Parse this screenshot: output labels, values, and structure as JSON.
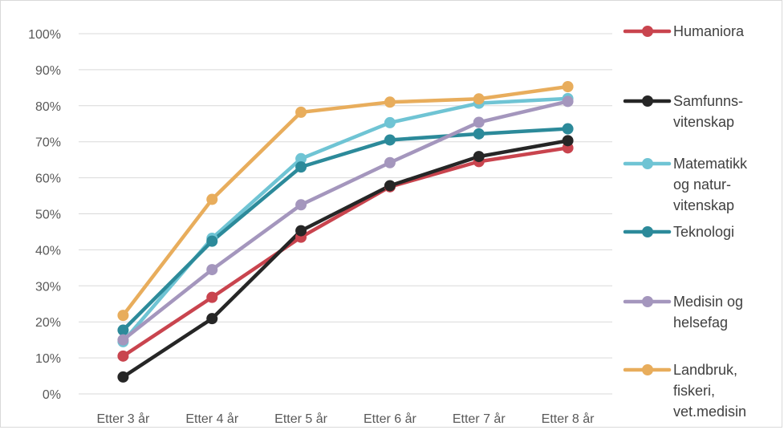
{
  "chart_data": {
    "type": "line",
    "title": "",
    "xlabel": "",
    "ylabel": "",
    "categories": [
      "Etter 3 år",
      "Etter 4 år",
      "Etter 5 år",
      "Etter 6 år",
      "Etter 7 år",
      "Etter 8 år"
    ],
    "ylim": [
      0,
      100
    ],
    "yticks": [
      "0%",
      "10%",
      "20%",
      "30%",
      "40%",
      "50%",
      "60%",
      "70%",
      "80%",
      "90%",
      "100%"
    ],
    "grid": true,
    "legend_position": "right",
    "series": [
      {
        "name": "Humaniora",
        "legend_lines": [
          "Humaniora"
        ],
        "color": "#c9444e",
        "values": [
          10.5,
          26.8,
          43.5,
          57.5,
          64.5,
          68.3
        ]
      },
      {
        "name": "Samfunns-vitenskap",
        "legend_lines": [
          "Samfunns-",
          "vitenskap"
        ],
        "color": "#262626",
        "values": [
          4.7,
          20.9,
          45.3,
          57.8,
          65.9,
          70.3
        ]
      },
      {
        "name": "Matematikk og natur-vitenskap",
        "legend_lines": [
          "Matematikk",
          "og natur-",
          "vitenskap"
        ],
        "color": "#6fc4d4",
        "values": [
          14.5,
          43.2,
          65.3,
          75.3,
          80.7,
          82.0
        ]
      },
      {
        "name": "Teknologi",
        "legend_lines": [
          "Teknologi"
        ],
        "color": "#2c8a9a",
        "values": [
          17.7,
          42.4,
          63.0,
          70.5,
          72.2,
          73.6
        ]
      },
      {
        "name": "Medisin og helsefag",
        "legend_lines": [
          "Medisin og",
          "helsefag"
        ],
        "color": "#a496bd",
        "values": [
          15.0,
          34.5,
          52.5,
          64.2,
          75.4,
          81.2
        ]
      },
      {
        "name": "Landbruk, fiskeri, vet.medisin",
        "legend_lines": [
          "Landbruk,",
          "fiskeri,",
          "vet.medisin"
        ],
        "color": "#e8ad5c",
        "values": [
          21.8,
          54.0,
          78.2,
          81.0,
          81.9,
          85.3
        ]
      }
    ]
  }
}
